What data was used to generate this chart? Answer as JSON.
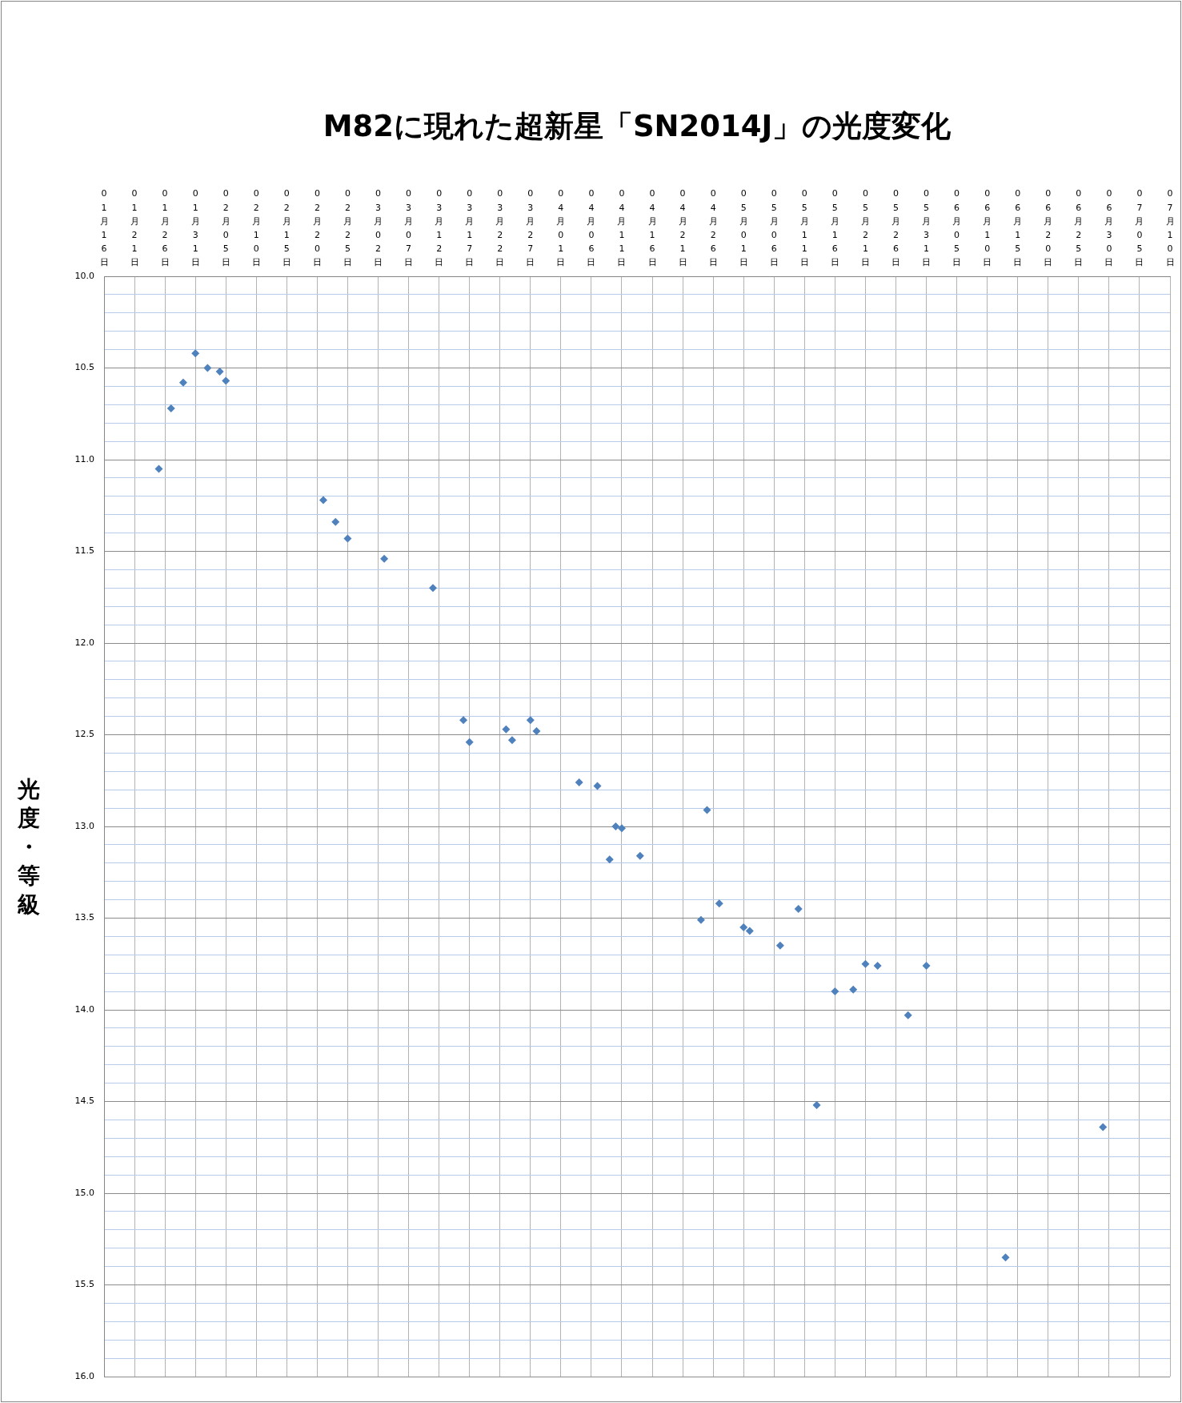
{
  "chart_data": {
    "type": "scatter",
    "title": "M82に現れた超新星「SN2014J」の光度変化",
    "ylabel": "光度・等級",
    "x": [
      "--01-25",
      "--01-27",
      "--01-29",
      "--01-31",
      "--02-02",
      "--02-04",
      "--02-05",
      "--02-21",
      "--02-23",
      "--02-25",
      "--03-03",
      "--03-11",
      "--03-16",
      "--03-17",
      "--03-23",
      "--03-24",
      "--03-27",
      "--03-28",
      "--04-04",
      "--04-07",
      "--04-09",
      "--04-10",
      "--04-11",
      "--04-14",
      "--04-24",
      "--04-25",
      "--04-27",
      "--05-01",
      "--05-02",
      "--05-07",
      "--05-10",
      "--05-13",
      "--05-16",
      "--05-19",
      "--05-21",
      "--05-23",
      "--05-28",
      "--05-31",
      "--06-13",
      "--06-29"
    ],
    "values": [
      11.05,
      10.72,
      10.58,
      10.42,
      10.5,
      10.52,
      10.57,
      11.22,
      11.34,
      11.43,
      11.54,
      11.7,
      12.42,
      12.54,
      12.47,
      12.53,
      12.42,
      12.48,
      12.76,
      12.78,
      13.18,
      13.0,
      13.01,
      13.16,
      13.51,
      12.91,
      13.42,
      13.55,
      13.57,
      13.65,
      13.45,
      14.52,
      13.9,
      13.89,
      13.75,
      13.76,
      14.03,
      13.76,
      15.35,
      14.64
    ],
    "color": "#4f81bd",
    "marker": "diamond",
    "grid": true,
    "xlim": [
      "--01-16",
      "--07-10"
    ],
    "xticks": [
      {
        "value": "--01-16",
        "label": "01月16日"
      },
      {
        "value": "--01-21",
        "label": "01月21日"
      },
      {
        "value": "--01-26",
        "label": "01月26日"
      },
      {
        "value": "--01-31",
        "label": "01月31日"
      },
      {
        "value": "--02-05",
        "label": "02月05日"
      },
      {
        "value": "--02-10",
        "label": "02月10日"
      },
      {
        "value": "--02-15",
        "label": "02月15日"
      },
      {
        "value": "--02-20",
        "label": "02月20日"
      },
      {
        "value": "--02-25",
        "label": "02月25日"
      },
      {
        "value": "--03-02",
        "label": "03月02日"
      },
      {
        "value": "--03-07",
        "label": "03月07日"
      },
      {
        "value": "--03-12",
        "label": "03月12日"
      },
      {
        "value": "--03-17",
        "label": "03月17日"
      },
      {
        "value": "--03-22",
        "label": "03月22日"
      },
      {
        "value": "--03-27",
        "label": "03月27日"
      },
      {
        "value": "--04-01",
        "label": "04月01日"
      },
      {
        "value": "--04-06",
        "label": "04月06日"
      },
      {
        "value": "--04-11",
        "label": "04月11日"
      },
      {
        "value": "--04-16",
        "label": "04月16日"
      },
      {
        "value": "--04-21",
        "label": "04月21日"
      },
      {
        "value": "--04-26",
        "label": "04月26日"
      },
      {
        "value": "--05-01",
        "label": "05月01日"
      },
      {
        "value": "--05-06",
        "label": "05月06日"
      },
      {
        "value": "--05-11",
        "label": "05月11日"
      },
      {
        "value": "--05-16",
        "label": "05月16日"
      },
      {
        "value": "--05-21",
        "label": "05月21日"
      },
      {
        "value": "--05-26",
        "label": "05月26日"
      },
      {
        "value": "--05-31",
        "label": "05月31日"
      },
      {
        "value": "--06-05",
        "label": "06月05日"
      },
      {
        "value": "--06-10",
        "label": "06月10日"
      },
      {
        "value": "--06-15",
        "label": "06月15日"
      },
      {
        "value": "--06-20",
        "label": "06月20日"
      },
      {
        "value": "--06-25",
        "label": "06月25日"
      },
      {
        "value": "--06-30",
        "label": "06月30日"
      },
      {
        "value": "--07-05",
        "label": "07月05日"
      },
      {
        "value": "--07-10",
        "label": "07月10日"
      }
    ],
    "ylim": [
      16,
      10
    ],
    "yticks": [
      {
        "value": 10,
        "label": "10.0"
      },
      {
        "value": 10.1,
        "label": null
      },
      {
        "value": 10.2,
        "label": null
      },
      {
        "value": 10.3,
        "label": null
      },
      {
        "value": 10.4,
        "label": null
      },
      10.5,
      {
        "value": 10.6,
        "label": null
      },
      {
        "value": 10.7,
        "label": null
      },
      {
        "value": 10.8,
        "label": null
      },
      {
        "value": 10.9,
        "label": null
      },
      {
        "value": 11,
        "label": "11.0"
      },
      {
        "value": 11.1,
        "label": null
      },
      {
        "value": 11.2,
        "label": null
      },
      {
        "value": 11.3,
        "label": null
      },
      {
        "value": 11.4,
        "label": null
      },
      11.5,
      {
        "value": 11.6,
        "label": null
      },
      {
        "value": 11.7,
        "label": null
      },
      {
        "value": 11.8,
        "label": null
      },
      {
        "value": 11.9,
        "label": null
      },
      {
        "value": 12,
        "label": "12.0"
      },
      {
        "value": 12.1,
        "label": null
      },
      {
        "value": 12.2,
        "label": null
      },
      {
        "value": 12.3,
        "label": null
      },
      {
        "value": 12.4,
        "label": null
      },
      12.5,
      {
        "value": 12.6,
        "label": null
      },
      {
        "value": 12.7,
        "label": null
      },
      {
        "value": 12.8,
        "label": null
      },
      {
        "value": 12.9,
        "label": null
      },
      {
        "value": 13,
        "label": "13.0"
      },
      {
        "value": 13.1,
        "label": null
      },
      {
        "value": 13.2,
        "label": null
      },
      {
        "value": 13.3,
        "label": null
      },
      {
        "value": 13.4,
        "label": null
      },
      13.5,
      {
        "value": 13.6,
        "label": null
      },
      {
        "value": 13.7,
        "label": null
      },
      {
        "value": 13.8,
        "label": null
      },
      {
        "value": 13.9,
        "label": null
      },
      {
        "value": 14,
        "label": "14.0"
      },
      {
        "value": 14.1,
        "label": null
      },
      {
        "value": 14.2,
        "label": null
      },
      {
        "value": 14.3,
        "label": null
      },
      {
        "value": 14.4,
        "label": null
      },
      14.5,
      {
        "value": 14.6,
        "label": null
      },
      {
        "value": 14.7,
        "label": null
      },
      {
        "value": 14.8,
        "label": null
      },
      {
        "value": 14.9,
        "label": null
      },
      {
        "value": 15,
        "label": "15.0"
      },
      {
        "value": 15.1,
        "label": null
      },
      {
        "value": 15.2,
        "label": null
      },
      {
        "value": 15.3,
        "label": null
      },
      {
        "value": 15.4,
        "label": null
      },
      15.5,
      {
        "value": 15.6,
        "label": null
      },
      {
        "value": 15.7,
        "label": null
      },
      {
        "value": 15.8,
        "label": null
      },
      {
        "value": 15.9,
        "label": null
      },
      {
        "value": 16,
        "label": "16.0"
      }
    ]
  }
}
